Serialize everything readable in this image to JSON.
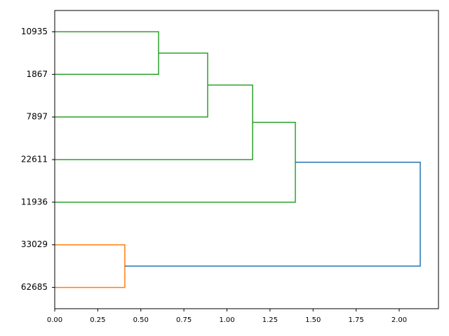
{
  "chart_data": {
    "type": "dendrogram",
    "orientation": "left",
    "xlim": [
      0,
      2.228
    ],
    "xticks": [
      {
        "value": 0,
        "label": "0.00"
      },
      {
        "value": 0.25,
        "label": "0.25"
      },
      {
        "value": 0.5,
        "label": "0.50"
      },
      {
        "value": 0.75,
        "label": "0.75"
      },
      {
        "value": 1,
        "label": "1.00"
      },
      {
        "value": 1.25,
        "label": "1.25"
      },
      {
        "value": 1.5,
        "label": "1.50"
      },
      {
        "value": 1.75,
        "label": "1.75"
      },
      {
        "value": 2,
        "label": "2.00"
      }
    ],
    "tree": {
      "height": 2.122,
      "color": "#1f77b4",
      "children": [
        {
          "height": 1.397,
          "color": "#2ca02c",
          "children": [
            {
              "height": 1.149,
              "color": "#2ca02c",
              "children": [
                {
                  "height": 0.888,
                  "color": "#2ca02c",
                  "children": [
                    {
                      "height": 0.603,
                      "color": "#2ca02c",
                      "children": [
                        {
                          "label": "10935"
                        },
                        {
                          "label": "1867"
                        }
                      ]
                    },
                    {
                      "label": "7897"
                    }
                  ]
                },
                {
                  "label": "22611"
                }
              ]
            },
            {
              "label": "11936"
            }
          ]
        },
        {
          "height": 0.407,
          "color": "#ff7f0e",
          "children": [
            {
              "label": "33029"
            },
            {
              "label": "62685"
            }
          ]
        }
      ]
    }
  }
}
